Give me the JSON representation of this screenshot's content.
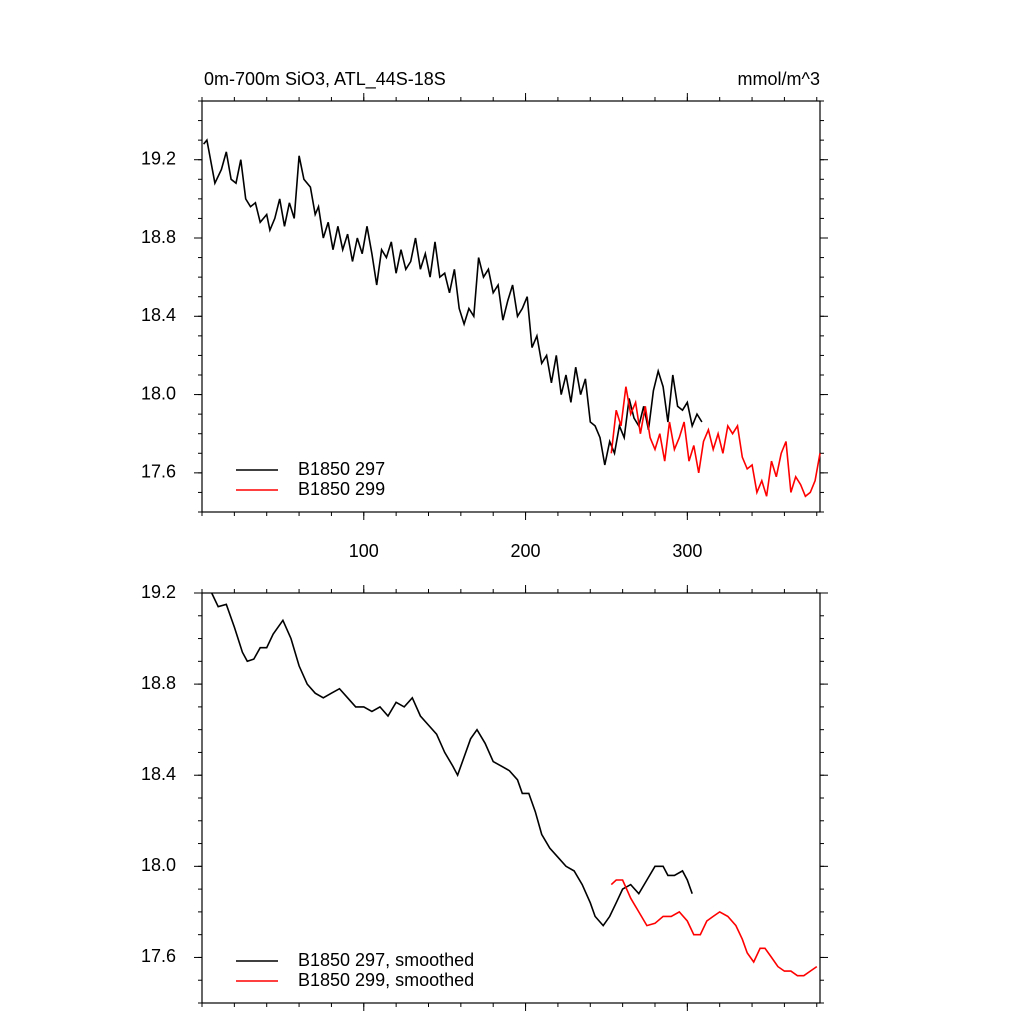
{
  "chart_data": [
    {
      "type": "line",
      "title": "0m-700m SiO3, ATL_44S-18S",
      "units": "mmol/m^3",
      "xlim": [
        0,
        382
      ],
      "xticks": [
        100,
        200,
        300
      ],
      "ylim": [
        17.4,
        19.5
      ],
      "yticks": [
        17.6,
        {
          "value": 18,
          "label": "18.0"
        },
        18.4,
        18.8,
        19.2
      ],
      "legend": "lower left",
      "series": [
        {
          "name": "B1850 297",
          "color": "#000000",
          "x": [
            1,
            3,
            8,
            12,
            15,
            18,
            21,
            24,
            27,
            30,
            33,
            36,
            40,
            42,
            45,
            48,
            51,
            54,
            57,
            60,
            63,
            67,
            70,
            72,
            75,
            78,
            81,
            84,
            87,
            90,
            93,
            96,
            99,
            102,
            105,
            108,
            111,
            114,
            117,
            120,
            123,
            126,
            129,
            132,
            135,
            138,
            141,
            144,
            147,
            150,
            153,
            156,
            159,
            162,
            165,
            168,
            171,
            174,
            177,
            180,
            183,
            186,
            189,
            192,
            195,
            198,
            201,
            204,
            207,
            210,
            213,
            216,
            219,
            222,
            225,
            228,
            231,
            234,
            237,
            240,
            243,
            246,
            249,
            252,
            255,
            258,
            261,
            264,
            267,
            270,
            273,
            276,
            279,
            282,
            285,
            288,
            291,
            294,
            297,
            300,
            303,
            306,
            309
          ],
          "values": [
            19.28,
            19.3,
            19.08,
            19.15,
            19.24,
            19.1,
            19.08,
            19.2,
            19.0,
            18.96,
            18.98,
            18.88,
            18.92,
            18.84,
            18.9,
            19.0,
            18.86,
            18.98,
            18.9,
            19.22,
            19.1,
            19.06,
            18.92,
            18.96,
            18.8,
            18.88,
            18.74,
            18.86,
            18.74,
            18.82,
            18.68,
            18.8,
            18.72,
            18.86,
            18.72,
            18.56,
            18.74,
            18.7,
            18.78,
            18.62,
            18.74,
            18.64,
            18.68,
            18.8,
            18.64,
            18.72,
            18.6,
            18.78,
            18.6,
            18.62,
            18.52,
            18.64,
            18.44,
            18.36,
            18.44,
            18.4,
            18.7,
            18.6,
            18.64,
            18.52,
            18.56,
            18.38,
            18.48,
            18.56,
            18.4,
            18.44,
            18.5,
            18.24,
            18.3,
            18.16,
            18.2,
            18.06,
            18.2,
            18.0,
            18.1,
            17.96,
            18.14,
            18.0,
            18.08,
            17.86,
            17.84,
            17.78,
            17.64,
            17.76,
            17.7,
            17.84,
            17.78,
            17.98,
            17.88,
            17.84,
            17.94,
            17.82,
            18.02,
            18.12,
            18.04,
            17.86,
            18.1,
            17.94,
            17.92,
            17.96,
            17.84,
            17.9,
            17.86
          ]
        },
        {
          "name": "B1850 299",
          "color": "#ff0000",
          "x": [
            253,
            256,
            259,
            262,
            265,
            268,
            271,
            274,
            277,
            280,
            283,
            286,
            289,
            292,
            295,
            298,
            301,
            304,
            307,
            310,
            313,
            316,
            319,
            322,
            325,
            328,
            331,
            334,
            337,
            340,
            343,
            346,
            349,
            352,
            355,
            358,
            361,
            364,
            367,
            370,
            373,
            376,
            379,
            382
          ],
          "values": [
            17.7,
            17.92,
            17.84,
            18.04,
            17.9,
            17.96,
            17.8,
            17.94,
            17.78,
            17.72,
            17.8,
            17.66,
            17.86,
            17.72,
            17.78,
            17.86,
            17.66,
            17.74,
            17.6,
            17.76,
            17.82,
            17.72,
            17.8,
            17.7,
            17.84,
            17.8,
            17.84,
            17.68,
            17.62,
            17.64,
            17.5,
            17.56,
            17.48,
            17.66,
            17.58,
            17.7,
            17.76,
            17.5,
            17.58,
            17.54,
            17.48,
            17.5,
            17.56,
            17.7
          ]
        }
      ]
    },
    {
      "type": "line",
      "xlim": [
        0,
        382
      ],
      "xticks": [
        100,
        200,
        300
      ],
      "ylim": [
        17.4,
        19.2
      ],
      "yticks": [
        17.6,
        {
          "value": 18,
          "label": "18.0"
        },
        18.4,
        18.8,
        19.2
      ],
      "legend": "lower left",
      "series": [
        {
          "name": "B1850 297, smoothed",
          "color": "#000000",
          "x": [
            6,
            10,
            15,
            20,
            25,
            28,
            32,
            36,
            40,
            44,
            50,
            55,
            60,
            65,
            70,
            75,
            80,
            85,
            90,
            95,
            100,
            105,
            110,
            115,
            120,
            125,
            130,
            135,
            140,
            145,
            150,
            155,
            158,
            162,
            166,
            170,
            175,
            180,
            185,
            190,
            195,
            198,
            202,
            206,
            210,
            215,
            220,
            225,
            230,
            235,
            240,
            243,
            248,
            252,
            256,
            260,
            265,
            270,
            275,
            280,
            285,
            288,
            292,
            297,
            300,
            303
          ],
          "values": [
            19.2,
            19.14,
            19.15,
            19.05,
            18.94,
            18.9,
            18.91,
            18.96,
            18.96,
            19.02,
            19.08,
            19.0,
            18.88,
            18.8,
            18.76,
            18.74,
            18.76,
            18.78,
            18.74,
            18.7,
            18.7,
            18.68,
            18.7,
            18.66,
            18.72,
            18.7,
            18.74,
            18.66,
            18.62,
            18.58,
            18.5,
            18.44,
            18.4,
            18.48,
            18.56,
            18.6,
            18.54,
            18.46,
            18.44,
            18.42,
            18.38,
            18.32,
            18.32,
            18.24,
            18.14,
            18.08,
            18.04,
            18.0,
            17.98,
            17.92,
            17.84,
            17.78,
            17.74,
            17.78,
            17.84,
            17.9,
            17.92,
            17.88,
            17.94,
            18.0,
            18.0,
            17.96,
            17.96,
            17.98,
            17.94,
            17.88
          ]
        },
        {
          "name": "B1850 299, smoothed",
          "color": "#ff0000",
          "x": [
            253,
            256,
            260,
            265,
            270,
            275,
            280,
            285,
            290,
            295,
            300,
            304,
            308,
            312,
            316,
            320,
            325,
            330,
            334,
            337,
            341,
            345,
            348,
            352,
            356,
            360,
            364,
            368,
            372,
            376,
            380
          ],
          "values": [
            17.92,
            17.94,
            17.94,
            17.86,
            17.8,
            17.74,
            17.75,
            17.78,
            17.78,
            17.8,
            17.76,
            17.7,
            17.7,
            17.76,
            17.78,
            17.8,
            17.78,
            17.74,
            17.68,
            17.62,
            17.58,
            17.64,
            17.64,
            17.6,
            17.56,
            17.54,
            17.54,
            17.52,
            17.52,
            17.54,
            17.56
          ]
        }
      ]
    }
  ]
}
